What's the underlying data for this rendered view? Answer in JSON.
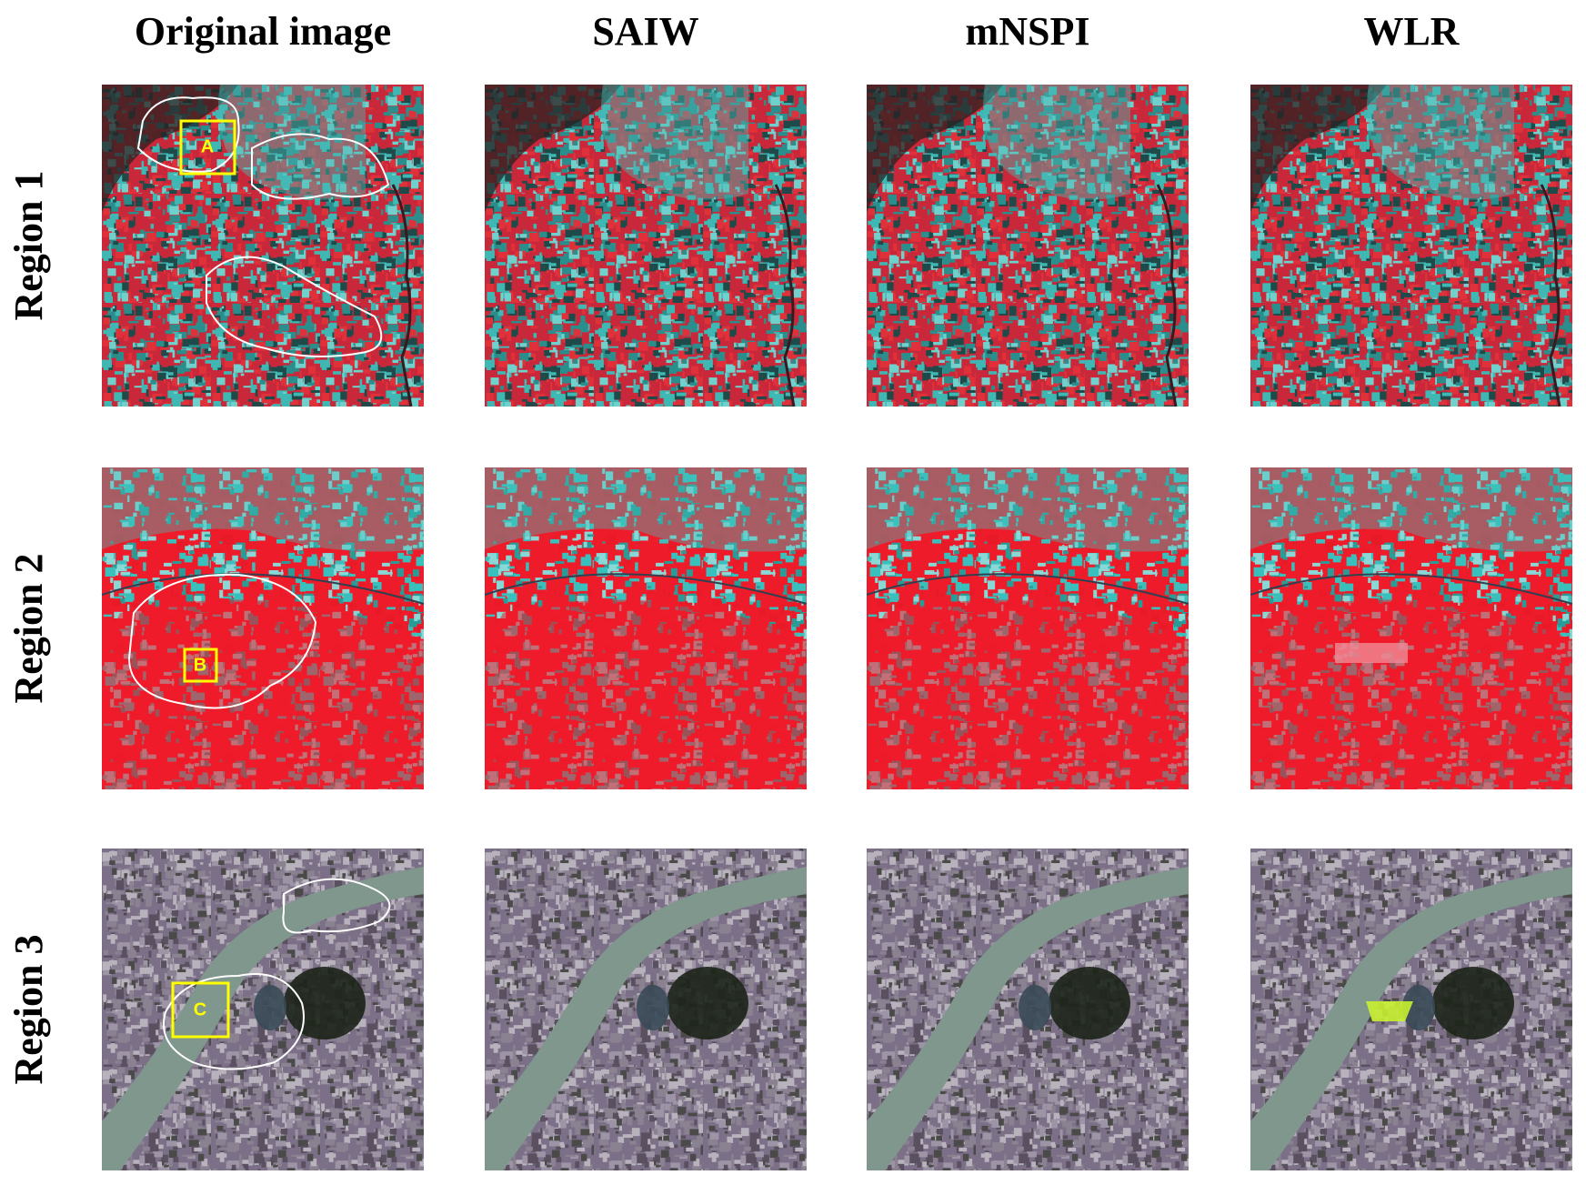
{
  "column_headers": [
    "Original image",
    "SAIW",
    "mNSPI",
    "WLR"
  ],
  "row_labels": [
    "Region 1",
    "Region 2",
    "Region 3"
  ],
  "box_labels": [
    "A",
    "B",
    "C"
  ]
}
